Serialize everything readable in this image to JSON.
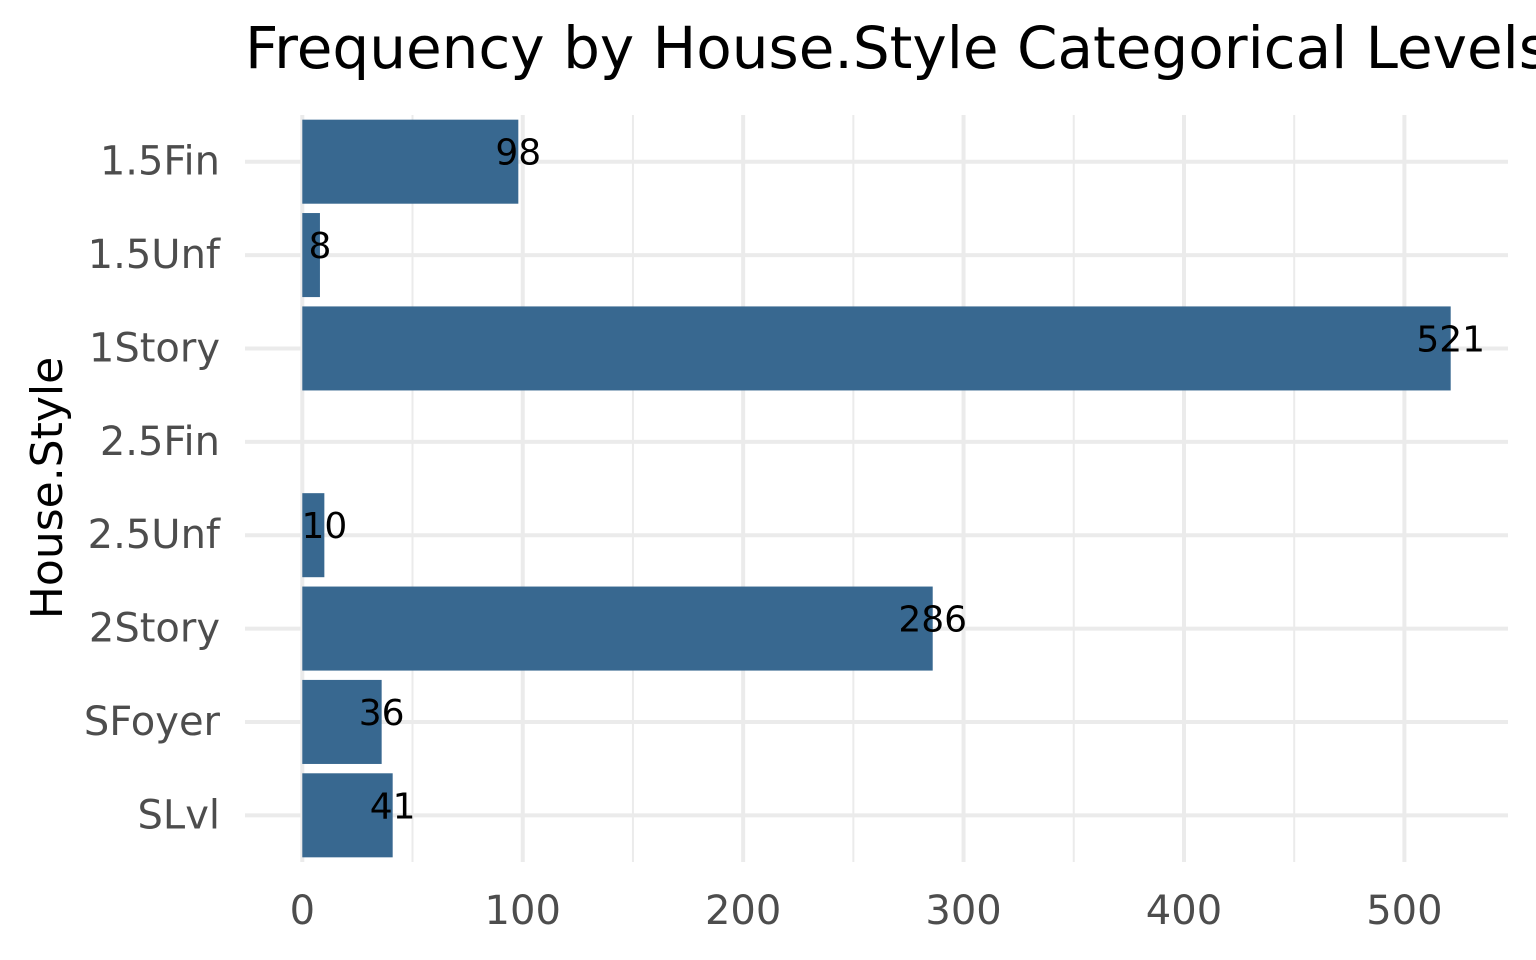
{
  "chart_data": {
    "type": "bar",
    "orientation": "horizontal",
    "title": "Frequency by House.Style Categorical Levels",
    "y_label": "House.Style",
    "categories": [
      "1.5Fin",
      "1.5Unf",
      "1Story",
      "2.5Fin",
      "2.5Unf",
      "2Story",
      "SFoyer",
      "SLvl"
    ],
    "values": [
      98,
      8,
      521,
      null,
      10,
      286,
      36,
      41
    ],
    "color": "#386890",
    "xlim": [
      -26,
      547
    ],
    "xticks": [
      0,
      100,
      200,
      300,
      400,
      500
    ],
    "grid": true
  }
}
